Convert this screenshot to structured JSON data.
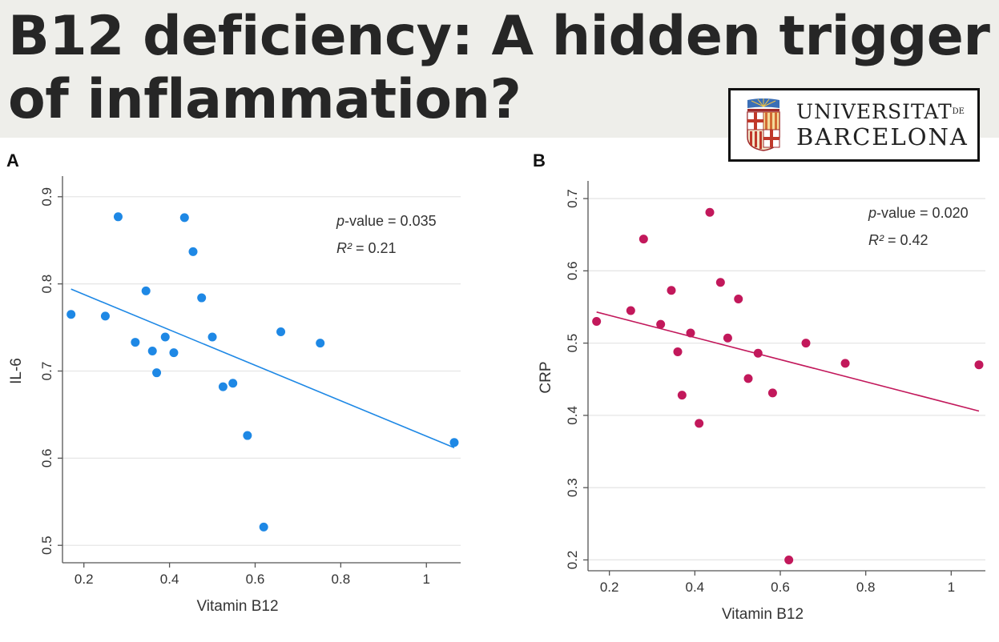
{
  "header": {
    "title": "B12 deficiency: A hidden trigger of inflammation?"
  },
  "logo": {
    "line1_main": "UNIVERSITAT",
    "line1_suffix": "DE",
    "line2": "BARCELONA"
  },
  "chart_data": [
    {
      "type": "scatter",
      "panel": "A",
      "title": "",
      "xlabel": "Vitamin B12",
      "ylabel": "IL-6",
      "xlim": [
        0.15,
        1.08
      ],
      "ylim": [
        0.48,
        0.92
      ],
      "xticks": [
        0.2,
        0.4,
        0.6,
        0.8,
        1
      ],
      "yticks": [
        0.5,
        0.6,
        0.7,
        0.8,
        0.9
      ],
      "grid": true,
      "color": "#1e88e5",
      "points": [
        {
          "x": 0.17,
          "y": 0.765
        },
        {
          "x": 0.25,
          "y": 0.763
        },
        {
          "x": 0.28,
          "y": 0.877
        },
        {
          "x": 0.32,
          "y": 0.733
        },
        {
          "x": 0.345,
          "y": 0.792
        },
        {
          "x": 0.36,
          "y": 0.723
        },
        {
          "x": 0.37,
          "y": 0.698
        },
        {
          "x": 0.39,
          "y": 0.739
        },
        {
          "x": 0.41,
          "y": 0.721
        },
        {
          "x": 0.435,
          "y": 0.876
        },
        {
          "x": 0.455,
          "y": 0.837
        },
        {
          "x": 0.475,
          "y": 0.784
        },
        {
          "x": 0.5,
          "y": 0.739
        },
        {
          "x": 0.525,
          "y": 0.682
        },
        {
          "x": 0.548,
          "y": 0.686
        },
        {
          "x": 0.582,
          "y": 0.626
        },
        {
          "x": 0.62,
          "y": 0.521
        },
        {
          "x": 0.66,
          "y": 0.745
        },
        {
          "x": 0.752,
          "y": 0.732
        },
        {
          "x": 1.065,
          "y": 0.618
        }
      ],
      "fit_line": {
        "x": [
          0.17,
          1.065
        ],
        "y": [
          0.794,
          0.612
        ]
      },
      "annotation": {
        "p_label": "p",
        "p_text": "-value = 0.035",
        "r2_label": "R²",
        "r2_text": " = 0.21"
      }
    },
    {
      "type": "scatter",
      "panel": "B",
      "title": "",
      "xlabel": "Vitamin B12",
      "ylabel": "CRP",
      "xlim": [
        0.15,
        1.08
      ],
      "ylim": [
        0.185,
        0.72
      ],
      "xticks": [
        0.2,
        0.4,
        0.6,
        0.8,
        1
      ],
      "yticks": [
        0.2,
        0.3,
        0.4,
        0.5,
        0.6,
        0.7
      ],
      "grid": true,
      "color": "#c2185b",
      "points": [
        {
          "x": 0.17,
          "y": 0.53
        },
        {
          "x": 0.25,
          "y": 0.545
        },
        {
          "x": 0.28,
          "y": 0.644
        },
        {
          "x": 0.32,
          "y": 0.526
        },
        {
          "x": 0.345,
          "y": 0.573
        },
        {
          "x": 0.36,
          "y": 0.488
        },
        {
          "x": 0.37,
          "y": 0.428
        },
        {
          "x": 0.39,
          "y": 0.514
        },
        {
          "x": 0.41,
          "y": 0.389
        },
        {
          "x": 0.435,
          "y": 0.681
        },
        {
          "x": 0.46,
          "y": 0.584
        },
        {
          "x": 0.477,
          "y": 0.507
        },
        {
          "x": 0.502,
          "y": 0.561
        },
        {
          "x": 0.525,
          "y": 0.451
        },
        {
          "x": 0.548,
          "y": 0.486
        },
        {
          "x": 0.582,
          "y": 0.431
        },
        {
          "x": 0.62,
          "y": 0.2
        },
        {
          "x": 0.66,
          "y": 0.5
        },
        {
          "x": 0.752,
          "y": 0.472
        },
        {
          "x": 1.065,
          "y": 0.47
        }
      ],
      "fit_line": {
        "x": [
          0.17,
          1.065
        ],
        "y": [
          0.543,
          0.406
        ]
      },
      "annotation": {
        "p_label": "p",
        "p_text": "-value = 0.020",
        "r2_label": "R²",
        "r2_text": " = 0.42"
      }
    }
  ]
}
